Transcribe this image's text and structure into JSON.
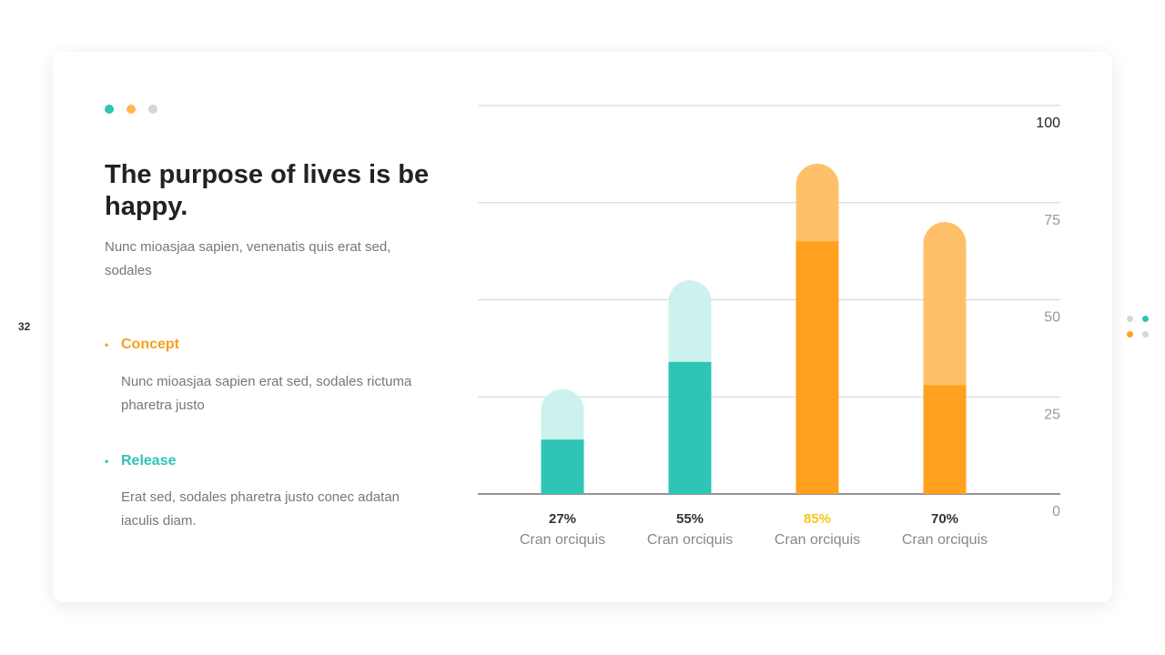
{
  "page_number": "32",
  "title": "The purpose of lives is be happy.",
  "subtitle": "Nunc mioasjaa sapien, venenatis quis erat sed, sodales",
  "bullets": [
    {
      "label": "Concept",
      "text": "Nunc mioasjaa sapien erat sed, sodales rictuma pharetra justo",
      "color": "#F5A01E"
    },
    {
      "label": "Release",
      "text": "Erat sed, sodales pharetra justo conec adatan iaculis diam.",
      "color": "#2EC4B6"
    }
  ],
  "colors": {
    "teal": "#2EC4B6",
    "teal_light": "#CCF2EE",
    "orange": "#FFA01E",
    "orange_light": "#FFC06A",
    "gray_dot": "#D5D5DE",
    "highlight_label": "#F5C518"
  },
  "chart_data": {
    "type": "bar",
    "categories": [
      "Cran orciquis",
      "Cran orciquis",
      "Cran orciquis",
      "Cran orciquis"
    ],
    "data_labels": [
      "27%",
      "55%",
      "85%",
      "70%"
    ],
    "series": [
      {
        "values": [
          14,
          34,
          65,
          28
        ]
      },
      {
        "values": [
          27,
          55,
          85,
          70
        ]
      }
    ],
    "bar_colors": [
      "teal",
      "teal",
      "orange",
      "orange"
    ],
    "highlight_index": 2,
    "yticks": [
      "0",
      "25",
      "50",
      "75",
      "100"
    ],
    "ylim": [
      0,
      100
    ],
    "y_axis_side": "right",
    "grid": true
  }
}
